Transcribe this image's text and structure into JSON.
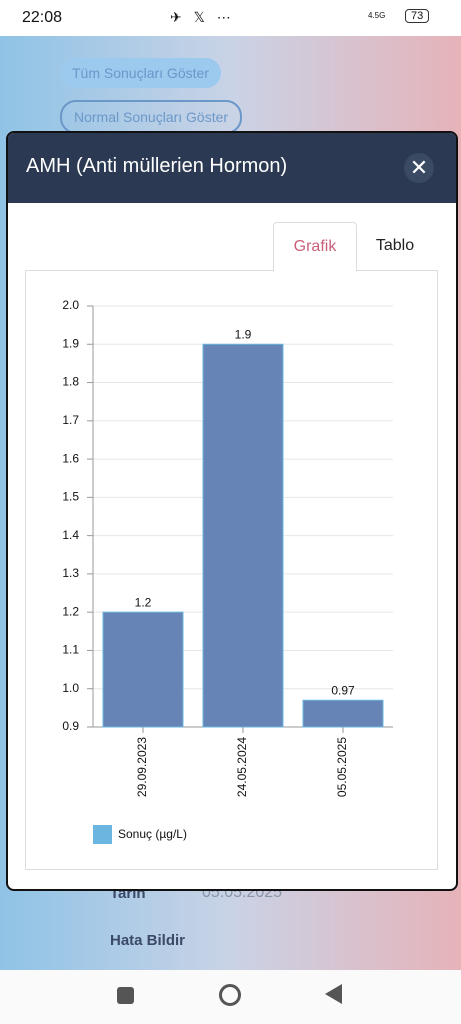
{
  "status_bar": {
    "time": "22:08",
    "network": "4.5G",
    "battery": "73"
  },
  "background": {
    "buttons": [
      "Tüm Sonuçları Göster",
      "Normal Sonuçları Göster"
    ],
    "date_label": "Tarih",
    "date_value": "05.05.2025",
    "report": "Hata Bildir"
  },
  "modal": {
    "title": "AMH (Anti müllerien Hormon)",
    "tabs": [
      "Grafik",
      "Tablo"
    ],
    "active_tab": 0
  },
  "chart_data": {
    "type": "bar",
    "categories": [
      "29.09.2023",
      "24.05.2024",
      "05.05.2025"
    ],
    "series": [
      {
        "name": "Sonuç (µg/L)",
        "color": "#6685b6",
        "border_color": "#6ab6e0",
        "values": [
          1.2,
          1.9,
          0.97
        ]
      }
    ],
    "ylim": [
      0.9,
      2.0
    ],
    "yticks": [
      0.9,
      {
        "value": 1,
        "label": "1.0"
      },
      1.1,
      1.2,
      1.3,
      1.4,
      1.5,
      1.6,
      1.7,
      1.8,
      1.9,
      {
        "value": 2,
        "label": "2.0"
      }
    ],
    "grid": true,
    "legend": "bottom-left"
  }
}
